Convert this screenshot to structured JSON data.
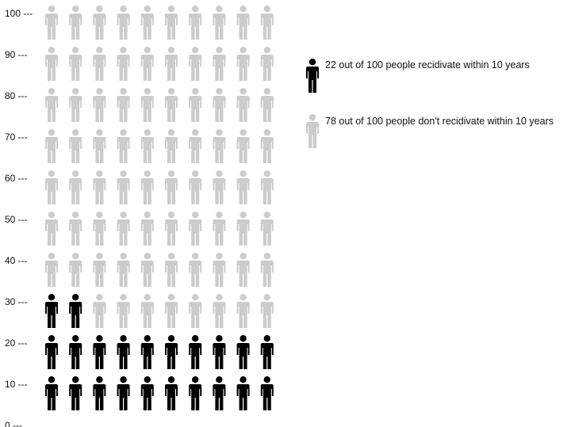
{
  "chart_data": {
    "type": "pictogram",
    "y_ticks": [
      "0 ---",
      "10 ---",
      "20 ---",
      "30 ---",
      "40 ---",
      "50 ---",
      "60 ---",
      "70 ---",
      "80 ---",
      "90 ---",
      "100 ---"
    ],
    "ylim": [
      0,
      100
    ],
    "columns": 10,
    "total": 100,
    "series": [
      {
        "name": "22 out of 100 people recidivate within 10 years",
        "value": 22,
        "color": "#000000"
      },
      {
        "name": "78 out of 100 people don't recidivate within 10 years",
        "value": 78,
        "color": "#cccccc"
      }
    ],
    "legend_position": "right",
    "grid": false
  }
}
